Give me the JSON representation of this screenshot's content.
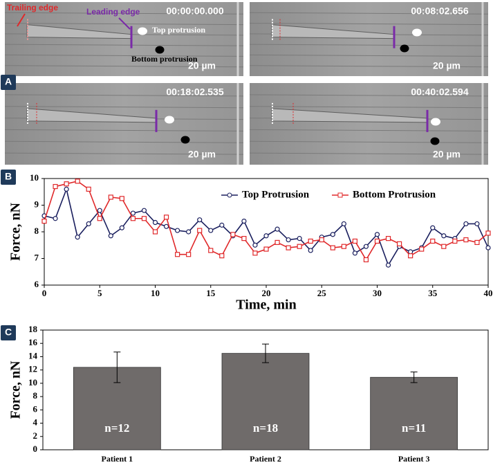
{
  "panel_labels": [
    "A",
    "B",
    "C"
  ],
  "panel_a": {
    "frames": [
      {
        "time": "00:00:00.000",
        "scale": "20 µm"
      },
      {
        "time": "00:08:02.656",
        "scale": "20 µm"
      },
      {
        "time": "00:18:02.535",
        "scale": "20 µm"
      },
      {
        "time": "00:40:02.594",
        "scale": "20 µm"
      }
    ],
    "annotations": {
      "trailing_edge": "Trailing edge",
      "leading_edge": "Leading edge",
      "top_protrusion": "Top protrusion",
      "bottom_protrusion": "Bottom protrusion"
    }
  },
  "chart_data": [
    {
      "type": "line",
      "xlabel": "Time, min",
      "ylabel": "Force, nN",
      "x": [
        0,
        1,
        2,
        3,
        4,
        5,
        6,
        7,
        8,
        9,
        10,
        11,
        12,
        13,
        14,
        15,
        16,
        17,
        18,
        19,
        20,
        21,
        22,
        23,
        24,
        25,
        26,
        27,
        28,
        29,
        30,
        31,
        32,
        33,
        34,
        35,
        36,
        37,
        38,
        39,
        40
      ],
      "xlim": [
        0,
        40
      ],
      "xticks": [
        0,
        5,
        10,
        15,
        20,
        25,
        30,
        35,
        40
      ],
      "ylim": [
        6,
        10
      ],
      "yticks": [
        6,
        7,
        8,
        9,
        10
      ],
      "legend": "upper right",
      "series": [
        {
          "name": "Top Protrusion",
          "color": "#1a1f5e",
          "marker": "circle",
          "values": [
            8.6,
            8.5,
            9.6,
            7.8,
            8.3,
            8.8,
            7.85,
            8.15,
            8.7,
            8.8,
            8.35,
            8.2,
            8.05,
            8.0,
            8.45,
            8.05,
            8.25,
            7.85,
            8.4,
            7.5,
            7.85,
            8.1,
            7.7,
            7.75,
            7.3,
            7.8,
            7.9,
            8.3,
            7.2,
            7.45,
            7.9,
            6.75,
            7.45,
            7.25,
            7.4,
            8.15,
            7.85,
            7.75,
            8.3,
            8.3,
            7.4
          ]
        },
        {
          "name": "Bottom Protrusion",
          "color": "#e0282a",
          "marker": "square",
          "values": [
            8.4,
            9.7,
            9.8,
            9.9,
            9.6,
            8.5,
            9.3,
            9.25,
            8.5,
            8.5,
            8.0,
            8.55,
            7.15,
            7.15,
            8.05,
            7.3,
            7.1,
            7.9,
            7.75,
            7.2,
            7.35,
            7.6,
            7.4,
            7.45,
            7.65,
            7.7,
            7.4,
            7.45,
            7.65,
            6.95,
            7.65,
            7.75,
            7.55,
            7.1,
            7.35,
            7.65,
            7.45,
            7.65,
            7.7,
            7.6,
            7.95
          ]
        }
      ]
    },
    {
      "type": "bar",
      "ylabel": "Force, nN",
      "categories": [
        "Patient 1",
        "Patient 2",
        "Patient 3"
      ],
      "values": [
        12.4,
        14.5,
        10.9
      ],
      "errors": [
        2.3,
        1.4,
        0.8
      ],
      "annotations": [
        "n=12",
        "n=18",
        "n=11"
      ],
      "color": "#6f6b6a",
      "ylim": [
        0,
        18
      ],
      "yticks": [
        0,
        2,
        4,
        6,
        8,
        10,
        12,
        14,
        16,
        18
      ]
    }
  ]
}
